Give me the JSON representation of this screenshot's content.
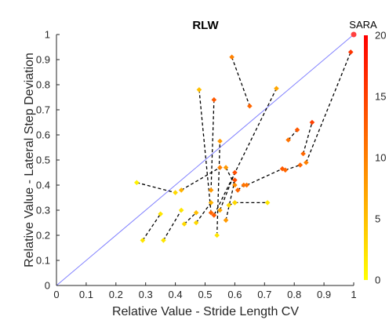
{
  "chart_data": {
    "type": "scatter",
    "title": "RLW",
    "xlabel": "Relative Value - Stride Length CV",
    "ylabel": "Relative Value - Lateral Step Deviation",
    "xlim": [
      0,
      1
    ],
    "ylim": [
      0,
      1
    ],
    "xticks": [
      "0",
      "0.1",
      "0.2",
      "0.3",
      "0.4",
      "0.5",
      "0.6",
      "0.7",
      "0.8",
      "0.9",
      "1"
    ],
    "yticks": [
      "0",
      "0.1",
      "0.2",
      "0.3",
      "0.4",
      "0.5",
      "0.6",
      "0.7",
      "0.8",
      "0.9",
      "1"
    ],
    "grid": false,
    "reference_line": {
      "from": [
        0,
        0
      ],
      "to": [
        1,
        1
      ],
      "color": "#8080ff"
    },
    "colorbar": {
      "title": "SARA",
      "range": [
        0,
        20
      ],
      "ticks": [
        "0",
        "5",
        "10",
        "15",
        "20"
      ],
      "colormap": [
        "#ffff00",
        "#ff0000"
      ]
    },
    "reference_point": {
      "x": 1.0,
      "y": 1.0,
      "sara": 20,
      "color": "#ff4040"
    },
    "segments": [
      {
        "from": {
          "x": 0.27,
          "y": 0.41,
          "sara": 1
        },
        "to": {
          "x": 0.4,
          "y": 0.37,
          "sara": 3
        }
      },
      {
        "from": {
          "x": 0.29,
          "y": 0.18,
          "sara": 2
        },
        "to": {
          "x": 0.35,
          "y": 0.285,
          "sara": 2
        }
      },
      {
        "from": {
          "x": 0.36,
          "y": 0.18,
          "sara": 2
        },
        "to": {
          "x": 0.42,
          "y": 0.3,
          "sara": 2
        }
      },
      {
        "from": {
          "x": 0.43,
          "y": 0.245,
          "sara": 3
        },
        "to": {
          "x": 0.47,
          "y": 0.29,
          "sara": 5
        }
      },
      {
        "from": {
          "x": 0.42,
          "y": 0.38,
          "sara": 6
        },
        "to": {
          "x": 0.55,
          "y": 0.47,
          "sara": 10
        }
      },
      {
        "from": {
          "x": 0.47,
          "y": 0.25,
          "sara": 3
        },
        "to": {
          "x": 0.52,
          "y": 0.33,
          "sara": 6
        }
      },
      {
        "from": {
          "x": 0.54,
          "y": 0.2,
          "sara": 2
        },
        "to": {
          "x": 0.55,
          "y": 0.575,
          "sara": 8
        }
      },
      {
        "from": {
          "x": 0.48,
          "y": 0.78,
          "sara": 5
        },
        "to": {
          "x": 0.52,
          "y": 0.29,
          "sara": 12
        }
      },
      {
        "from": {
          "x": 0.53,
          "y": 0.74,
          "sara": 13
        },
        "to": {
          "x": 0.52,
          "y": 0.38,
          "sara": 8
        }
      },
      {
        "from": {
          "x": 0.59,
          "y": 0.91,
          "sara": 10
        },
        "to": {
          "x": 0.65,
          "y": 0.715,
          "sara": 12
        }
      },
      {
        "from": {
          "x": 0.74,
          "y": 0.785,
          "sara": 7
        },
        "to": {
          "x": 0.53,
          "y": 0.28,
          "sara": 13
        }
      },
      {
        "from": {
          "x": 0.55,
          "y": 0.3,
          "sara": 7
        },
        "to": {
          "x": 0.6,
          "y": 0.45,
          "sara": 14
        }
      },
      {
        "from": {
          "x": 0.57,
          "y": 0.47,
          "sara": 8
        },
        "to": {
          "x": 0.6,
          "y": 0.4,
          "sara": 9
        }
      },
      {
        "from": {
          "x": 0.57,
          "y": 0.26,
          "sara": 8
        },
        "to": {
          "x": 0.6,
          "y": 0.42,
          "sara": 14
        }
      },
      {
        "from": {
          "x": 0.58,
          "y": 0.32,
          "sara": 3
        },
        "to": {
          "x": 0.6,
          "y": 0.33,
          "sara": 3
        }
      },
      {
        "from": {
          "x": 0.6,
          "y": 0.33,
          "sara": 3
        },
        "to": {
          "x": 0.71,
          "y": 0.33,
          "sara": 2
        }
      },
      {
        "from": {
          "x": 0.61,
          "y": 0.38,
          "sara": 12
        },
        "to": {
          "x": 0.63,
          "y": 0.4,
          "sara": 11
        }
      },
      {
        "from": {
          "x": 0.64,
          "y": 0.4,
          "sara": 11
        },
        "to": {
          "x": 0.76,
          "y": 0.465,
          "sara": 13
        }
      },
      {
        "from": {
          "x": 0.77,
          "y": 0.46,
          "sara": 12
        },
        "to": {
          "x": 0.82,
          "y": 0.48,
          "sara": 12
        }
      },
      {
        "from": {
          "x": 0.78,
          "y": 0.58,
          "sara": 11
        },
        "to": {
          "x": 0.81,
          "y": 0.62,
          "sara": 13
        }
      },
      {
        "from": {
          "x": 0.83,
          "y": 0.525,
          "sara": 12
        },
        "to": {
          "x": 0.86,
          "y": 0.65,
          "sara": 15
        }
      },
      {
        "from": {
          "x": 0.84,
          "y": 0.49,
          "sara": 10
        },
        "to": {
          "x": 0.99,
          "y": 0.93,
          "sara": 16
        }
      }
    ]
  }
}
